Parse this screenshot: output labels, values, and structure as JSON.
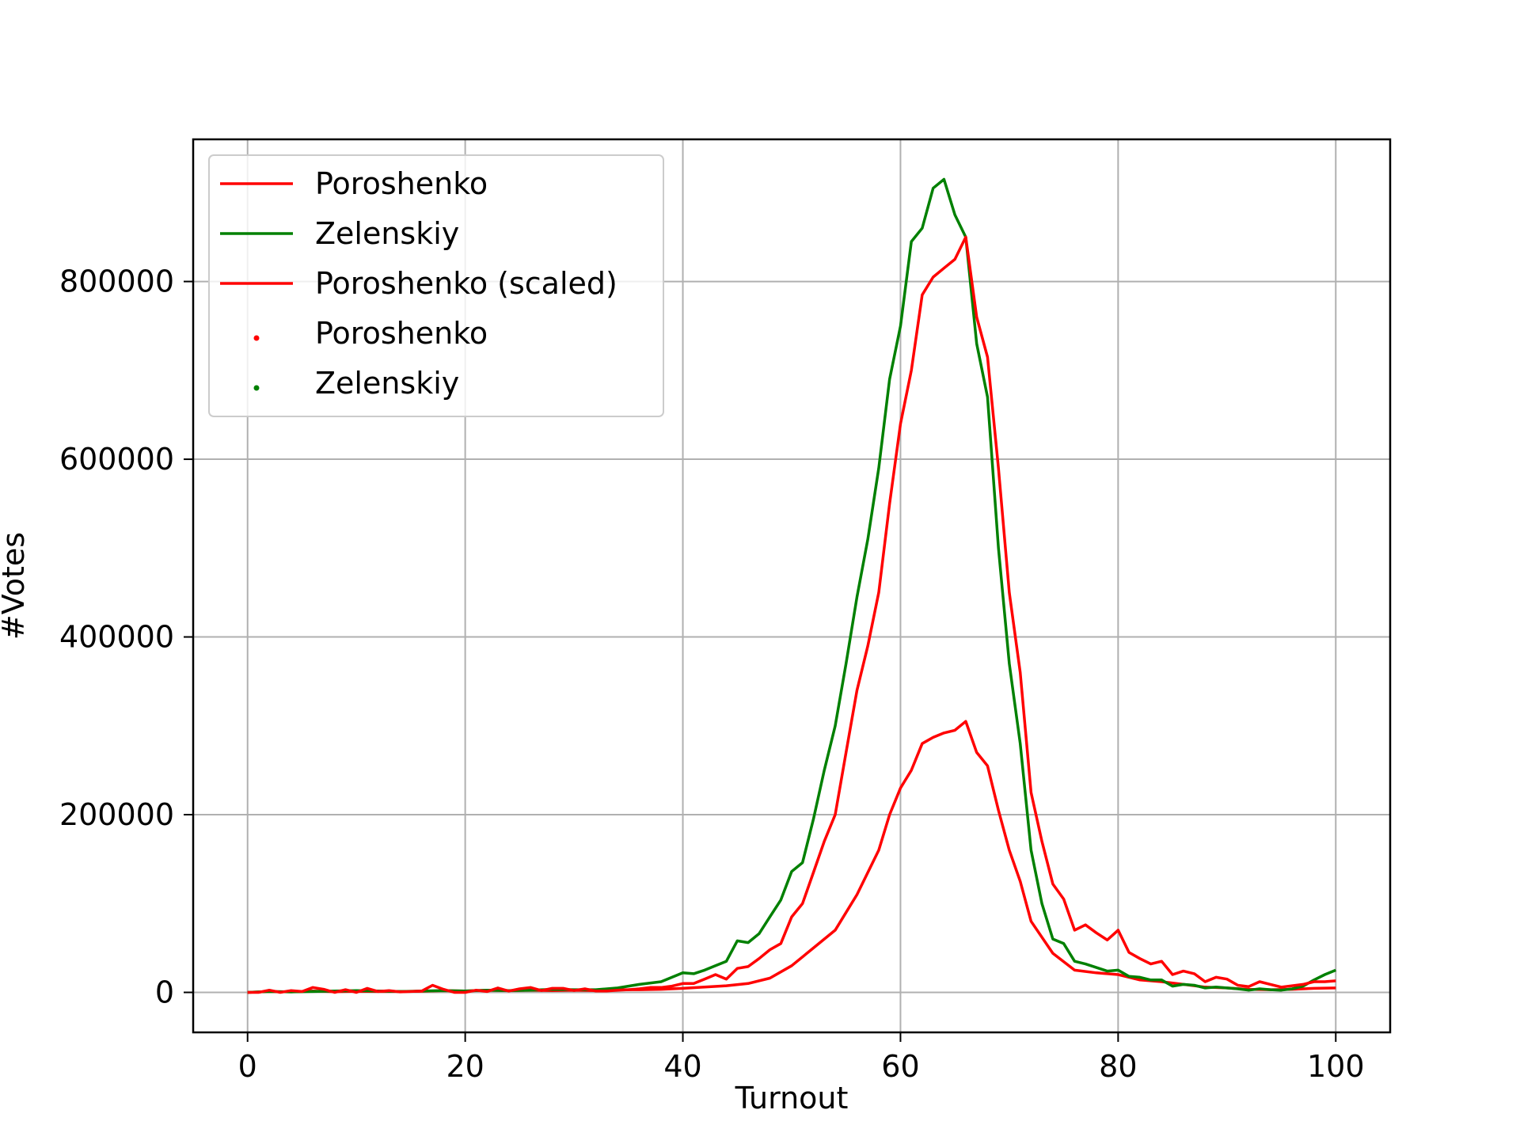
{
  "chart_data": {
    "type": "line",
    "title": "",
    "xlabel": "Turnout",
    "ylabel": "#Votes",
    "xlim": [
      -5,
      105
    ],
    "ylim": [
      -45000,
      960000
    ],
    "xticks": [
      0,
      20,
      40,
      60,
      80,
      100
    ],
    "yticks": [
      0,
      200000,
      400000,
      600000,
      800000
    ],
    "grid": true,
    "legend_position": "top-left",
    "legend": [
      {
        "label": "Poroshenko",
        "kind": "line",
        "color": "#ff0000"
      },
      {
        "label": "Zelenskiy",
        "kind": "line",
        "color": "#008000"
      },
      {
        "label": "Poroshenko (scaled)",
        "kind": "line",
        "color": "#ff0000"
      },
      {
        "label": "Poroshenko",
        "kind": "marker",
        "color": "#ff0000"
      },
      {
        "label": "Zelenskiy",
        "kind": "marker",
        "color": "#008000"
      }
    ],
    "series": [
      {
        "name": "Poroshenko",
        "color": "#ff0000",
        "x": [
          0,
          2,
          4,
          6,
          8,
          10,
          12,
          14,
          16,
          18,
          20,
          22,
          24,
          26,
          28,
          30,
          32,
          34,
          36,
          38,
          40,
          42,
          44,
          46,
          48,
          50,
          52,
          54,
          56,
          58,
          59,
          60,
          61,
          62,
          63,
          64,
          65,
          66,
          67,
          68,
          69,
          70,
          71,
          72,
          74,
          76,
          78,
          80,
          82,
          84,
          86,
          88,
          90,
          92,
          94,
          96,
          98,
          100
        ],
        "y": [
          0,
          1000,
          500,
          1500,
          800,
          1200,
          1000,
          1000,
          1200,
          2000,
          1500,
          2500,
          2000,
          2500,
          2000,
          2500,
          2000,
          3000,
          3000,
          3500,
          4500,
          6000,
          7500,
          10000,
          16000,
          30000,
          50000,
          70000,
          110000,
          160000,
          200000,
          230000,
          250000,
          280000,
          287000,
          292000,
          295000,
          305000,
          270000,
          255000,
          205000,
          160000,
          125000,
          80000,
          44000,
          25000,
          22000,
          20000,
          14000,
          12000,
          9000,
          6000,
          5000,
          3500,
          3000,
          3500,
          4500,
          5000
        ]
      },
      {
        "name": "Zelenskiy",
        "color": "#008000",
        "x": [
          0,
          2,
          4,
          6,
          8,
          10,
          12,
          14,
          16,
          18,
          20,
          22,
          24,
          26,
          28,
          30,
          32,
          34,
          36,
          38,
          40,
          41,
          42,
          43,
          44,
          45,
          46,
          47,
          48,
          49,
          50,
          51,
          52,
          53,
          54,
          55,
          56,
          57,
          58,
          59,
          60,
          61,
          62,
          63,
          64,
          65,
          66,
          67,
          68,
          69,
          70,
          71,
          72,
          73,
          74,
          75,
          76,
          77,
          78,
          79,
          80,
          81,
          82,
          83,
          84,
          85,
          86,
          87,
          88,
          89,
          90,
          91,
          92,
          93,
          94,
          95,
          96,
          97,
          98,
          99,
          100
        ],
        "y": [
          0,
          1000,
          500,
          1000,
          1500,
          2000,
          1500,
          1000,
          1500,
          2000,
          1500,
          2500,
          2000,
          2500,
          3500,
          3000,
          3000,
          5000,
          9000,
          12000,
          22000,
          21000,
          25000,
          30000,
          35000,
          58000,
          56000,
          66000,
          85000,
          104000,
          136000,
          146000,
          195000,
          250000,
          300000,
          370000,
          445000,
          510000,
          590000,
          690000,
          750000,
          845000,
          860000,
          905000,
          915000,
          875000,
          850000,
          730000,
          670000,
          500000,
          370000,
          280000,
          160000,
          100000,
          60000,
          55000,
          35000,
          32000,
          28000,
          24000,
          25000,
          18000,
          17000,
          14000,
          14000,
          7000,
          9000,
          8000,
          5000,
          6000,
          5000,
          4000,
          2500,
          4000,
          3000,
          2500,
          4000,
          7000,
          14000,
          20000,
          25000
        ]
      },
      {
        "name": "Poroshenko (scaled)",
        "color": "#ff0000",
        "x": [
          0,
          1,
          2,
          3,
          4,
          5,
          6,
          7,
          8,
          9,
          10,
          11,
          12,
          13,
          14,
          15,
          16,
          17,
          18,
          19,
          20,
          21,
          22,
          23,
          24,
          25,
          26,
          27,
          28,
          29,
          30,
          31,
          32,
          33,
          34,
          35,
          36,
          37,
          38,
          39,
          40,
          41,
          42,
          43,
          44,
          45,
          46,
          47,
          48,
          49,
          50,
          51,
          52,
          53,
          54,
          55,
          56,
          57,
          58,
          59,
          60,
          61,
          62,
          63,
          64,
          65,
          66,
          67,
          68,
          69,
          70,
          71,
          72,
          73,
          74,
          75,
          76,
          77,
          78,
          79,
          80,
          81,
          82,
          83,
          84,
          85,
          86,
          87,
          88,
          89,
          90,
          91,
          92,
          93,
          94,
          95,
          96,
          97,
          98,
          99,
          100
        ],
        "y": [
          0,
          0,
          2500,
          0,
          2000,
          1000,
          5500,
          3500,
          0,
          3000,
          0,
          4500,
          1000,
          2000,
          500,
          1000,
          1500,
          8000,
          3500,
          0,
          0,
          2500,
          1000,
          5000,
          1500,
          4000,
          5500,
          2000,
          4500,
          4500,
          2000,
          4000,
          1500,
          1500,
          2500,
          3000,
          4000,
          5500,
          5500,
          7000,
          10000,
          10000,
          15000,
          20000,
          15000,
          27000,
          29000,
          38000,
          48000,
          55000,
          85000,
          100000,
          135000,
          170000,
          200000,
          270000,
          340000,
          390000,
          450000,
          550000,
          640000,
          700000,
          785000,
          805000,
          815000,
          825000,
          850000,
          760000,
          715000,
          590000,
          450000,
          360000,
          225000,
          170000,
          122000,
          105000,
          70000,
          76000,
          67000,
          59000,
          70000,
          45000,
          38000,
          32000,
          35000,
          20000,
          24000,
          21000,
          12000,
          17000,
          15000,
          8000,
          6500,
          12000,
          9000,
          6000,
          7500,
          9000,
          12000,
          12000,
          13000
        ]
      }
    ]
  }
}
